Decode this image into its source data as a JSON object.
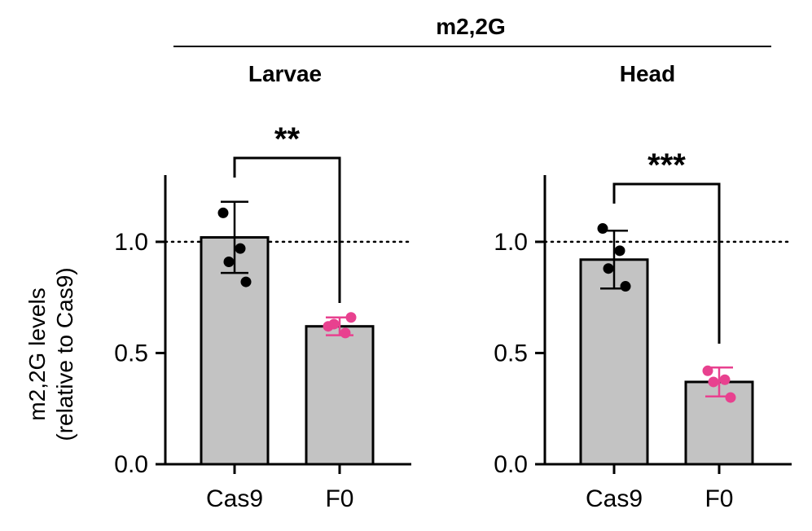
{
  "figure": {
    "header": "m2,2G",
    "ylabel_line1": "m2,2G levels",
    "ylabel_line2": "(relative to Cas9)"
  },
  "colors": {
    "bar_fill": "#c3c3c3",
    "control_points": "#000000",
    "mutant_points": "#e8418f"
  },
  "chart_data": [
    {
      "type": "bar",
      "title": "Larvae",
      "categories": [
        "Cas9",
        "F0"
      ],
      "values": [
        1.02,
        0.62
      ],
      "errors": [
        0.16,
        0.04
      ],
      "points": [
        [
          1.13,
          0.97,
          0.91,
          0.82
        ],
        [
          0.62,
          0.59,
          0.63,
          0.66
        ]
      ],
      "reference_line": 1.0,
      "significance": "**",
      "ylim": [
        0,
        1.3
      ],
      "yticks": [
        "0.0",
        "0.5",
        "1.0"
      ],
      "ytick_values": [
        0,
        0.5,
        1.0
      ],
      "ylabel": "m2,2G levels (relative to Cas9)"
    },
    {
      "type": "bar",
      "title": "Head",
      "categories": [
        "Cas9",
        "F0"
      ],
      "values": [
        0.92,
        0.37
      ],
      "errors": [
        0.13,
        0.065
      ],
      "points": [
        [
          1.06,
          0.96,
          0.88,
          0.8
        ],
        [
          0.42,
          0.38,
          0.37,
          0.3
        ]
      ],
      "reference_line": 1.0,
      "significance": "***",
      "ylim": [
        0,
        1.3
      ],
      "yticks": [
        "0.0",
        "0.5",
        "1.0"
      ],
      "ytick_values": [
        0,
        0.5,
        1.0
      ]
    }
  ]
}
